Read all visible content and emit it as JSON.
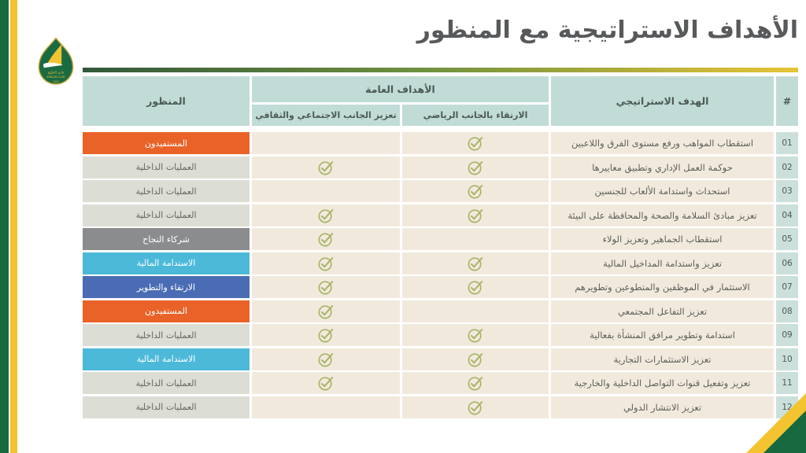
{
  "title": "الأهداف الاستراتيجية مع المنظور",
  "logo": {
    "name_ar": "نادي الخليج",
    "name_en": "KHALEEJ CLUB",
    "year": "1945"
  },
  "colors": {
    "brand_green": "#17693f",
    "brand_gold": "#f3c330",
    "header_teal": "#c1dcd6",
    "num_teal": "#cbe0da",
    "row_beige": "#f2e9dd",
    "check_olive": "#a6b468",
    "title_gray": "#57595b"
  },
  "table": {
    "headers": {
      "hash": "#",
      "objective": "الهدف الاستراتيجي",
      "group": "الأهداف العامة",
      "sports": "الارتقاء بالجانب الرياضي",
      "social": "تعزيز الجانب الاجتماعي والثقافي",
      "perspective": "المنظور"
    },
    "perspective_styles": {
      "beneficiaries": {
        "bg": "#e96228",
        "text": "#ffffff"
      },
      "internal": {
        "bg": "#dcded6",
        "text": "#63675e"
      },
      "partners": {
        "bg": "#8b8c8e",
        "text": "#ffffff"
      },
      "financial": {
        "bg": "#4cb9d9",
        "text": "#ffffff"
      },
      "development": {
        "bg": "#4a6cb4",
        "text": "#ffffff"
      }
    },
    "rows": [
      {
        "num": "01",
        "objective": "استقطاب المواهب ورفع مستوى الفرق واللاعبين",
        "sports": true,
        "social": false,
        "perspective": "المستفيدون",
        "perspective_key": "beneficiaries"
      },
      {
        "num": "02",
        "objective": "حوكمة العمل الإداري وتطبيق معاييرها",
        "sports": true,
        "social": true,
        "perspective": "العمليات الداخلية",
        "perspective_key": "internal"
      },
      {
        "num": "03",
        "objective": "استحداث واستدامة الألعاب للجنسين",
        "sports": true,
        "social": false,
        "perspective": "العمليات الداخلية",
        "perspective_key": "internal"
      },
      {
        "num": "04",
        "objective": "تعزيز مبادئ السلامة والصحة والمحافظة على البيئة",
        "sports": true,
        "social": true,
        "perspective": "العمليات الداخلية",
        "perspective_key": "internal"
      },
      {
        "num": "05",
        "objective": "استقطاب الجماهير وتعزيز الولاء",
        "sports": false,
        "social": true,
        "perspective": "شركاء النجاح",
        "perspective_key": "partners"
      },
      {
        "num": "06",
        "objective": "تعزيز واستدامة المداخيل المالية",
        "sports": true,
        "social": true,
        "perspective": "الاستدامة المالية",
        "perspective_key": "financial"
      },
      {
        "num": "07",
        "objective": "الاستثمار في الموظفين والمتطوعين وتطويرهم",
        "sports": true,
        "social": true,
        "perspective": "الارتقاء والتطوير",
        "perspective_key": "development"
      },
      {
        "num": "08",
        "objective": "تعزيز التفاعل المجتمعي",
        "sports": false,
        "social": true,
        "perspective": "المستفيدون",
        "perspective_key": "beneficiaries"
      },
      {
        "num": "09",
        "objective": "استدامة وتطوير مرافق المنشأة بفعالية",
        "sports": true,
        "social": true,
        "perspective": "العمليات الداخلية",
        "perspective_key": "internal"
      },
      {
        "num": "10",
        "objective": "تعزيز الاستثمارات التجارية",
        "sports": true,
        "social": true,
        "perspective": "الاستدامة المالية",
        "perspective_key": "financial"
      },
      {
        "num": "11",
        "objective": "تعزيز وتفعيل قنوات التواصل الداخلية والخارجية",
        "sports": true,
        "social": true,
        "perspective": "العمليات الداخلية",
        "perspective_key": "internal"
      },
      {
        "num": "12",
        "objective": "تعزيز الانتشار الدولي",
        "sports": true,
        "social": false,
        "perspective": "العمليات الداخلية",
        "perspective_key": "internal"
      }
    ]
  }
}
